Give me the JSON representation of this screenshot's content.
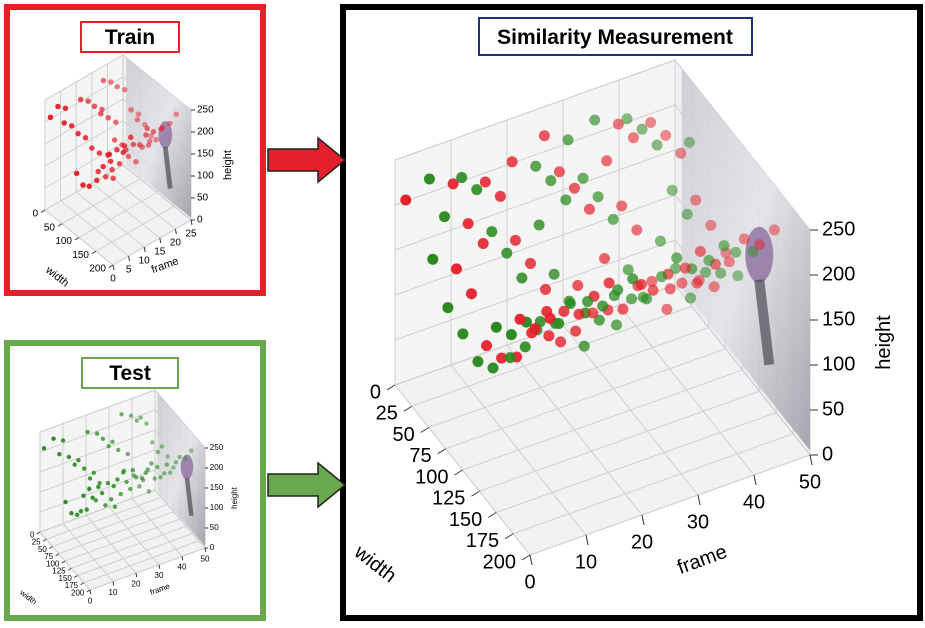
{
  "train": {
    "title": "Train",
    "width_axis": {
      "label": "width",
      "ticks": [
        0,
        50,
        100,
        150,
        200
      ]
    },
    "frame_axis": {
      "label": "frame",
      "ticks": [
        0,
        5,
        10,
        15,
        20,
        25
      ]
    },
    "height_axis": {
      "label": "height",
      "ticks": [
        0,
        50,
        100,
        150,
        200,
        250
      ]
    }
  },
  "test": {
    "title": "Test",
    "width_axis": {
      "label": "width",
      "ticks": [
        0,
        25,
        50,
        75,
        100,
        125,
        150,
        175,
        200
      ]
    },
    "frame_axis": {
      "label": "frame",
      "ticks": [
        0,
        10,
        20,
        30,
        40,
        50
      ]
    },
    "height_axis": {
      "label": "height",
      "ticks": [
        0,
        50,
        100,
        150,
        200,
        250
      ]
    }
  },
  "similarity": {
    "title": "Similarity Measurement",
    "width_axis": {
      "label": "width",
      "ticks": [
        0,
        25,
        50,
        75,
        100,
        125,
        150,
        175,
        200
      ]
    },
    "frame_axis": {
      "label": "frame",
      "ticks": [
        0,
        10,
        20,
        30,
        40,
        50
      ]
    },
    "height_axis": {
      "label": "height",
      "ticks": [
        0,
        50,
        100,
        150,
        200,
        250
      ]
    }
  }
}
